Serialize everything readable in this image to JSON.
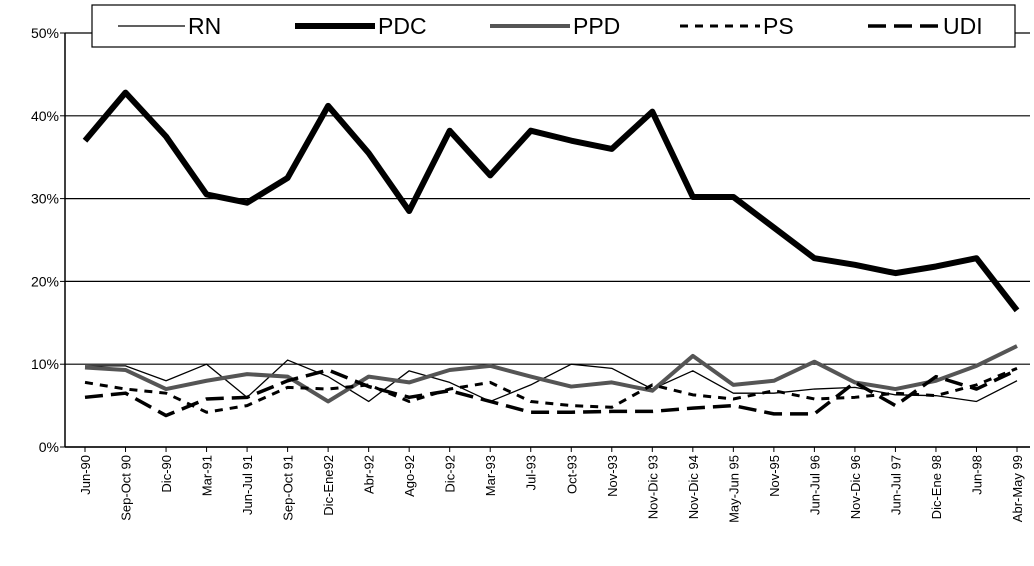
{
  "chart_data": {
    "type": "line",
    "categories": [
      "Jun-90",
      "Sep-Oct 90",
      "Dic-90",
      "Mar-91",
      "Jun-Jul 91",
      "Sep-Oct 91",
      "Dic-Ene92",
      "Abr-92",
      "Ago-92",
      "Dic-92",
      "Mar-93",
      "Jul-93",
      "Oct-93",
      "Nov-93",
      "Nov-Dic 93",
      "Nov-Dic 94",
      "May-Jun 95",
      "Nov-95",
      "Jun-Jul 96",
      "Nov-Dic 96",
      "Jun-Jul 97",
      "Dic-Ene 98",
      "Jun-98",
      "Abr-May 99"
    ],
    "series": [
      {
        "name": "RN",
        "color": "#000000",
        "values": [
          9.8,
          9.8,
          8,
          10,
          6,
          10.5,
          8.5,
          5.5,
          9.2,
          7.8,
          5.5,
          7.5,
          10,
          9.5,
          7,
          9.2,
          6.5,
          6.5,
          7,
          7.2,
          6.3,
          6.2,
          5.5,
          8
        ]
      },
      {
        "name": "PDC",
        "color": "#000000",
        "values": [
          37,
          42.8,
          37.5,
          30.5,
          29.5,
          32.5,
          41.2,
          35.5,
          28.5,
          38.2,
          32.8,
          38.2,
          37,
          36,
          40.5,
          30.2,
          30.2,
          26.5,
          22.8,
          22,
          21,
          21.8,
          22.8,
          16.5
        ]
      },
      {
        "name": "PPD",
        "color": "#555555",
        "values": [
          9.6,
          9.3,
          7,
          8,
          8.8,
          8.5,
          5.5,
          8.5,
          7.8,
          9.3,
          9.8,
          8.5,
          7.3,
          7.8,
          6.8,
          11,
          7.5,
          8,
          10.3,
          7.8,
          7,
          8,
          9.8,
          12.2
        ]
      },
      {
        "name": "PS",
        "color": "#000000",
        "values": [
          7.8,
          7,
          6.5,
          4.2,
          5,
          7.2,
          7,
          7.5,
          5.5,
          7,
          7.8,
          5.5,
          5,
          4.8,
          7.5,
          6.3,
          5.8,
          6.8,
          5.8,
          6,
          6.5,
          6.2,
          7.5,
          9.5
        ]
      },
      {
        "name": "UDI",
        "color": "#000000",
        "values": [
          6,
          6.5,
          3.8,
          5.8,
          6,
          8,
          9.3,
          7.3,
          6,
          6.8,
          5.5,
          4.2,
          4.2,
          4.3,
          4.3,
          4.7,
          5,
          4,
          4,
          7.8,
          5,
          8.5,
          7,
          9.3
        ]
      }
    ],
    "ylim": [
      0,
      50
    ],
    "yticks": [
      {
        "value": 0,
        "label": "0%"
      },
      {
        "value": 10,
        "label": "10%"
      },
      {
        "value": 20,
        "label": "20%"
      },
      {
        "value": 30,
        "label": "30%"
      },
      {
        "value": 40,
        "label": "40%"
      },
      {
        "value": 50,
        "label": "50%"
      }
    ],
    "grid": true
  }
}
